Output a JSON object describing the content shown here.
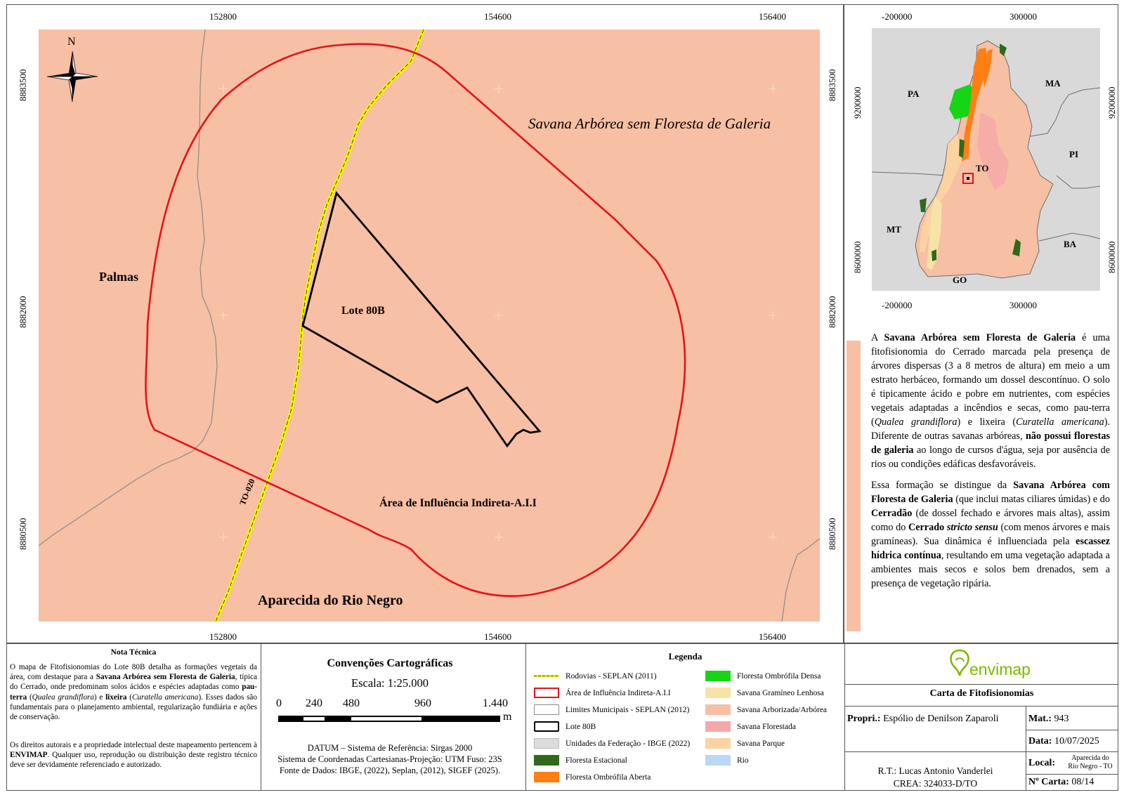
{
  "main_map": {
    "x_ticks": [
      "152800",
      "154600",
      "156400"
    ],
    "y_ticks": [
      "8883500",
      "8882000",
      "8880500"
    ],
    "north_label": "N",
    "labels": {
      "savana": "Savana Arbórea sem Floresta de Galeria",
      "palmas": "Palmas",
      "lote": "Lote 80B",
      "aii": "Área de Influência Indireta-A.I.I",
      "aparecida": "Aparecida do Rio Negro",
      "road": "TO-020"
    }
  },
  "inset_map": {
    "x_ticks": [
      "-200000",
      "300000"
    ],
    "y_ticks": [
      "9200000",
      "8600000"
    ],
    "states": [
      "PA",
      "MA",
      "PI",
      "TO",
      "MT",
      "BA",
      "GO"
    ]
  },
  "description": {
    "p1_a": "A ",
    "p1_b": "Savana Arbórea sem Floresta de Galeria",
    "p1_c": " é uma fitofisionomia do Cerrado marcada pela presença de árvores dispersas (3 a 8 metros de altura) em meio a um estrato herbáceo, formando um dossel descontínuo. O solo é tipicamente ácido e pobre em nutrientes, com espécies vegetais adaptadas a incêndios e secas, como pau-terra (",
    "p1_d": "Qualea grandiflora",
    "p1_e": ") e lixeira (",
    "p1_f": "Curatella americana",
    "p1_g": "). Diferente de outras savanas arbóreas, ",
    "p1_h": "não possui florestas de galeria",
    "p1_i": " ao longo de cursos d'água, seja por ausência de rios ou condições edáficas desfavoráveis.",
    "p2_a": "Essa formação se distingue da ",
    "p2_b": "Savana Arbórea com Floresta de Galeria",
    "p2_c": " (que inclui matas ciliares úmidas) e do ",
    "p2_d": "Cerradão",
    "p2_e": " (de dossel fechado e árvores mais altas), assim como do ",
    "p2_f": "Cerrado ",
    "p2_g": "stricto sensu",
    "p2_h": " (com menos árvores e mais gramíneas). Sua dinâmica é influenciada pela ",
    "p2_i": "escassez hídrica contínua",
    "p2_j": ", resultando em uma vegetação adaptada a ambientes mais secos e solos bem drenados, sem a presença de vegetação ripária."
  },
  "nota": {
    "title": "Nota Técnica",
    "p1_a": "O mapa de Fitofisionomias do Lote 80B detalha as formações vegetais da área, com destaque para a ",
    "p1_b": "Savana Arbórea sem Floresta de Galeria",
    "p1_c": ", típica do Cerrado, onde predominam solos ácidos e espécies adaptadas como ",
    "p1_d": "pau-terra",
    "p1_e": " (",
    "p1_f": "Qualea grandiflora",
    "p1_g": ") e ",
    "p1_h": "lixeira",
    "p1_i": " (",
    "p1_j": "Curatella americana",
    "p1_k": "). Esses dados são fundamentais para o planejamento ambiental, regularização fundiária e ações de conservação.",
    "p2_a": "Os direitos autorais e a propriedade intelectual deste mapeamento pertencem à ",
    "p2_b": "ENVIMAP",
    "p2_c": ". Qualquer uso, reprodução ou distribuição deste registro técnico deve ser devidamente referenciado e autorizado."
  },
  "convencoes": {
    "title": "Convenções Cartográficas",
    "scale": "Escala:  1:25.000",
    "ticks": [
      "0",
      "240",
      "480",
      "960",
      "1.440"
    ],
    "unit": "m",
    "datum": "DATUM – Sistema de Referência: Sirgas 2000",
    "projection": "Sistema de Coordenadas Cartesianas-Projeção: UTM Fuso: 23S",
    "source": "Fonte de Dados: IBGE, (2022), Seplan, (2012), SIGEF (2025)."
  },
  "legend": {
    "title": "Legenda",
    "left": [
      {
        "label": "Rodovias - SEPLAN (2011)",
        "type": "road"
      },
      {
        "label": "Área de Influência Indireta-A.I.I",
        "type": "aii",
        "color": "#e4131b"
      },
      {
        "label": "Limites Municipais - SEPLAN (2012)",
        "type": "limits"
      },
      {
        "label": "Lote 80B",
        "type": "lote"
      },
      {
        "label": "Unidades da Federação - IBGE (2022)",
        "type": "fill",
        "color": "#dcdcdc"
      },
      {
        "label": "Floresta Estacional",
        "type": "fill",
        "color": "#2e6a1a"
      },
      {
        "label": "Floresta Ombrófila Aberta",
        "type": "fill",
        "color": "#ff7f14"
      }
    ],
    "right": [
      {
        "label": "Floresta Ombrófila Densa",
        "color": "#15d515"
      },
      {
        "label": "Savana  Gramíneo Lenhosa",
        "color": "#f7e3a6"
      },
      {
        "label": "Savana Arborizada/Arbórea",
        "color": "#f7bfa3"
      },
      {
        "label": "Savana Florestada",
        "color": "#f5a8a8"
      },
      {
        "label": "Savana Parque",
        "color": "#fbd3a2"
      },
      {
        "label": "Rio",
        "color": "#b8d8f5"
      }
    ]
  },
  "title_block": {
    "logo": "envimap",
    "title": "Carta de Fitofisionomias",
    "propri_label": "Propri.:",
    "propri_value": "Espólio de Denilson Zaparoli",
    "mat_label": "Mat.:",
    "mat_value": "943",
    "data_label": "Data:",
    "data_value": "10/07/2025",
    "local_label": "Local:",
    "local_value_1": "Aparecida do",
    "local_value_2": "Rio Negro - TO",
    "rt": "R.T.: Lucas Antonio Vanderlei",
    "crea": "CREA: 324033-D/TO",
    "carta_label": "Nº Carta:",
    "carta_value": "08/14"
  },
  "colors": {
    "savana_arborizada": "#f7bfa3",
    "aii_red": "#e4131b",
    "road_yellow": "#f5f500",
    "logo_green": "#7ab800"
  }
}
